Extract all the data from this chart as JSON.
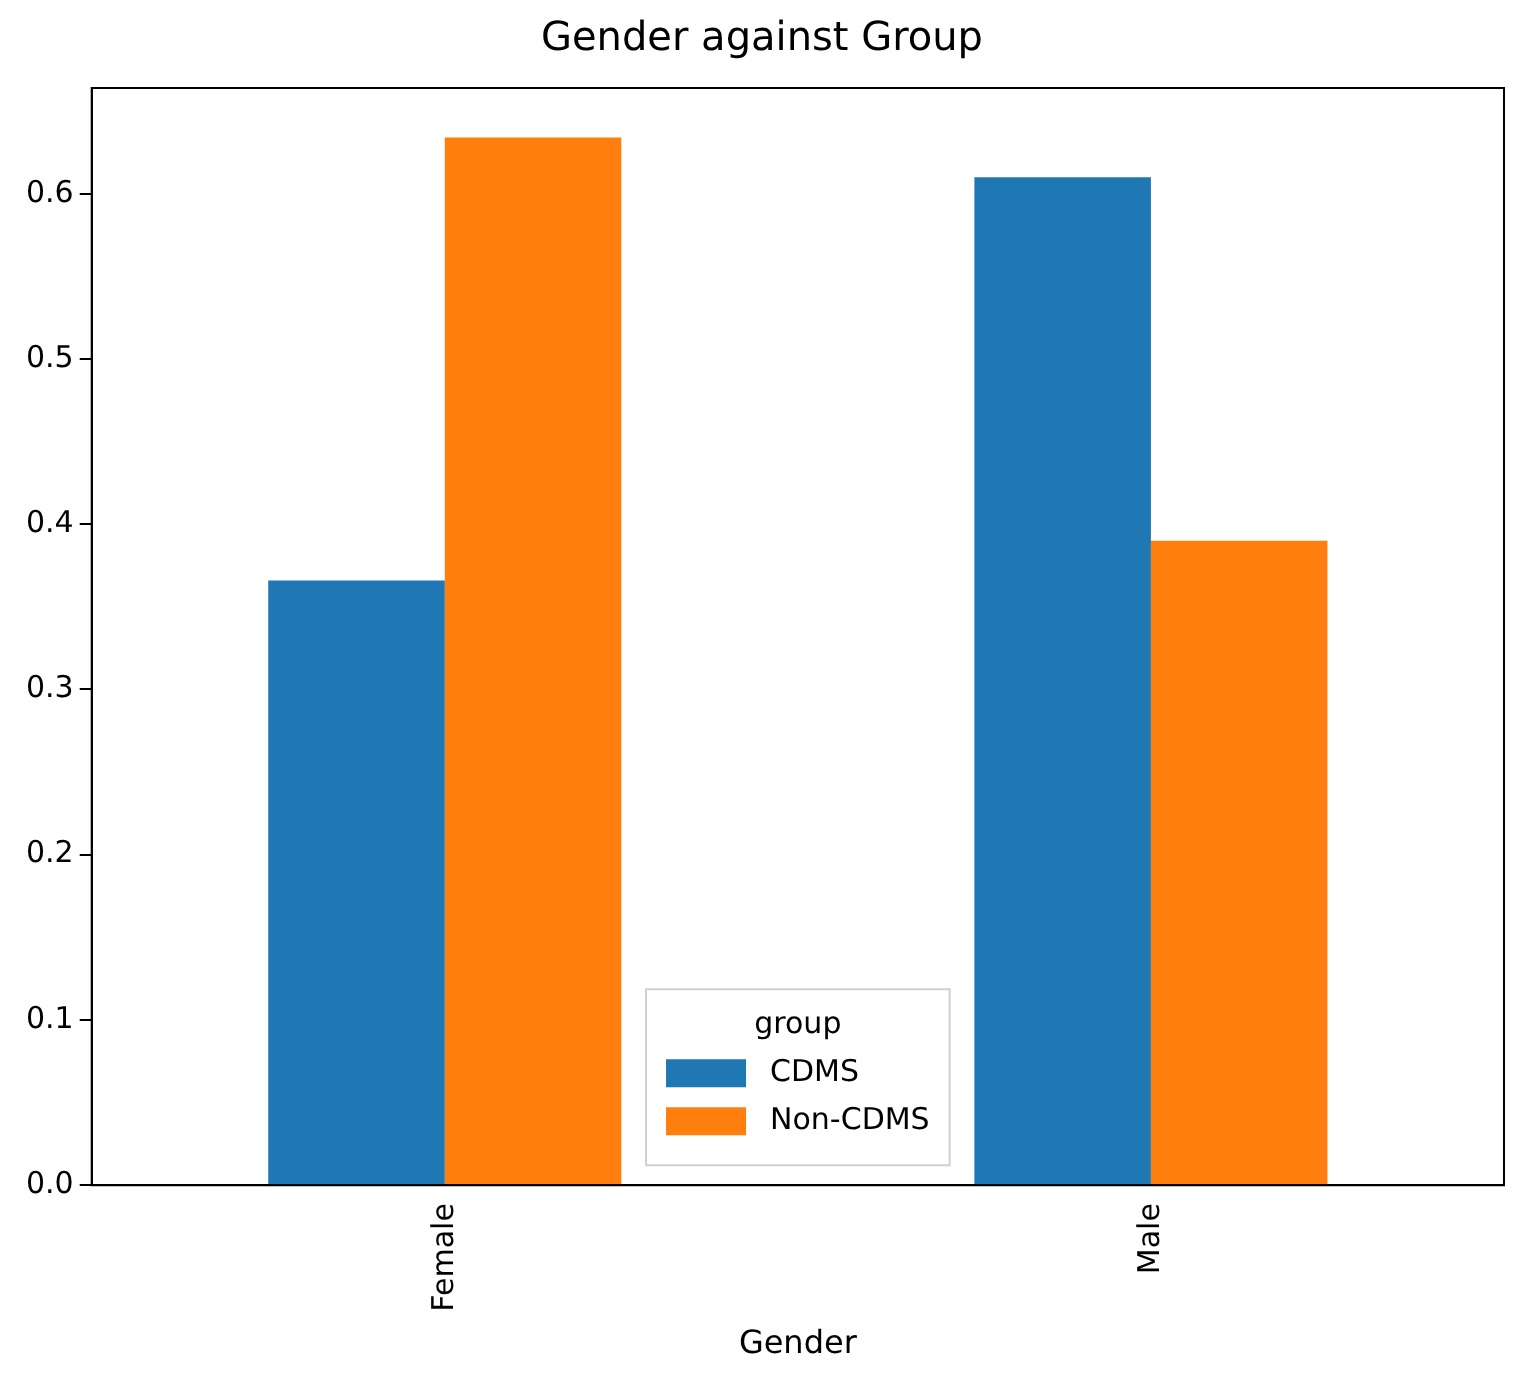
{
  "chart_data": {
    "type": "bar",
    "title": "Gender against Group",
    "xlabel": "Gender",
    "legend_title": "group",
    "categories": [
      "Female",
      "Male"
    ],
    "series": [
      {
        "name": "CDMS",
        "color": "#1f77b4",
        "values": [
          0.366,
          0.61
        ]
      },
      {
        "name": "Non-CDMS",
        "color": "#ff7f0e",
        "values": [
          0.634,
          0.39
        ]
      }
    ],
    "ylim": [
      0,
      0.664
    ],
    "yticks": [
      {
        "value": 0,
        "label": "0.0"
      },
      {
        "value": 0.1,
        "label": "0.1"
      },
      {
        "value": 0.2,
        "label": "0.2"
      },
      {
        "value": 0.3,
        "label": "0.3"
      },
      {
        "value": 0.4,
        "label": "0.4"
      },
      {
        "value": 0.5,
        "label": "0.5"
      },
      {
        "value": 0.6,
        "label": "0.6"
      }
    ],
    "grid": false,
    "legend": "bottom"
  }
}
